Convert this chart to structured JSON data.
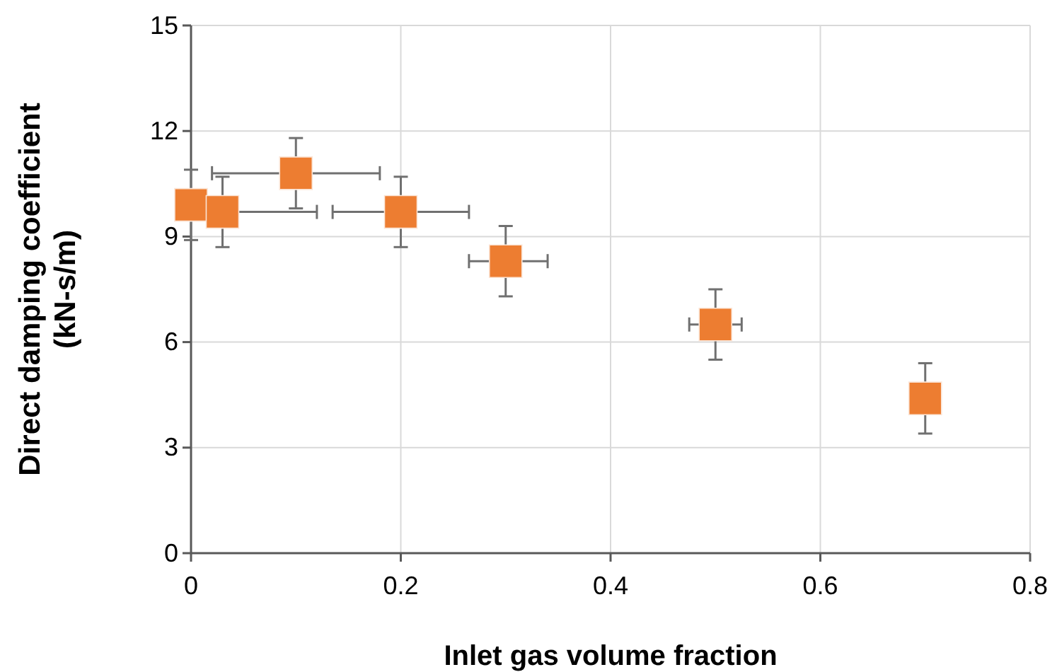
{
  "chart_data": {
    "type": "scatter",
    "xlabel": "Inlet gas volume fraction",
    "ylabel": "Direct damping coefficient\n(kN-s/m)",
    "x": [
      0,
      0.03,
      0.1,
      0.2,
      0.3,
      0.5,
      0.7
    ],
    "series": [
      {
        "color": "#ed7d31",
        "values": [
          9.9,
          9.7,
          10.8,
          9.7,
          8.3,
          6.5,
          4.4
        ],
        "errors": [
          1,
          1,
          1,
          1,
          1,
          1,
          1
        ],
        "xerrors": [
          null,
          [
            0.03,
            0.12
          ],
          [
            0.02,
            0.18
          ],
          [
            0.135,
            0.265
          ],
          [
            0.265,
            0.34
          ],
          [
            0.475,
            0.525
          ],
          null
        ]
      }
    ],
    "xlim": [
      0,
      0.8
    ],
    "ylim": [
      0,
      15
    ],
    "xticks": [
      0,
      0.2,
      0.4,
      0.6,
      0.8
    ],
    "yticks": [
      0,
      3,
      6,
      9,
      12,
      15
    ],
    "grid": true,
    "marker": "square"
  }
}
